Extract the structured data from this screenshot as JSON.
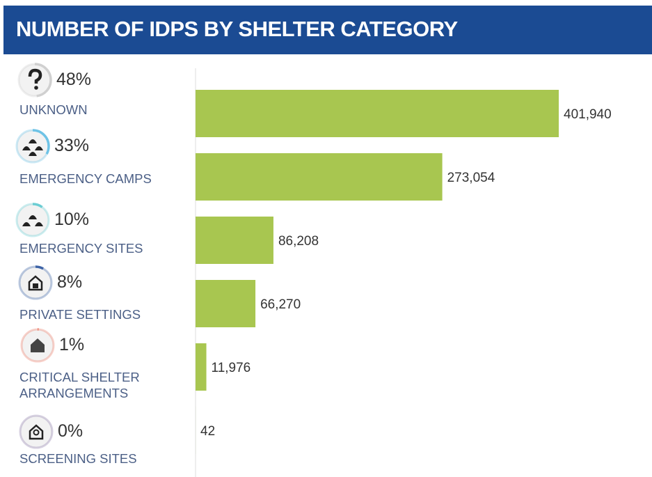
{
  "chart_data": {
    "type": "bar",
    "orientation": "horizontal",
    "title": "NUMBER OF IDPS BY SHELTER CATEGORY",
    "categories": [
      "UNKNOWN",
      "EMERGENCY CAMPS",
      "EMERGENCY SITES",
      "PRIVATE SETTINGS",
      "CRITICAL SHELTER ARRANGEMENTS",
      "SCREENING SITES"
    ],
    "values": [
      401940,
      273054,
      86208,
      66270,
      11976,
      42
    ],
    "value_labels": [
      "401,940",
      "273,054",
      "86,208",
      "66,270",
      "11,976",
      "42"
    ],
    "shares": [
      48,
      33,
      10,
      8,
      1,
      0
    ],
    "share_labels": [
      "48%",
      "33%",
      "10%",
      "8%",
      "1%",
      "0%"
    ],
    "color": "#a8c650",
    "share_colors": [
      "#d0d0d0",
      "#6fc3e6",
      "#6ccdd3",
      "#3d63a6",
      "#ec7a68",
      "#8d7ba8"
    ]
  }
}
